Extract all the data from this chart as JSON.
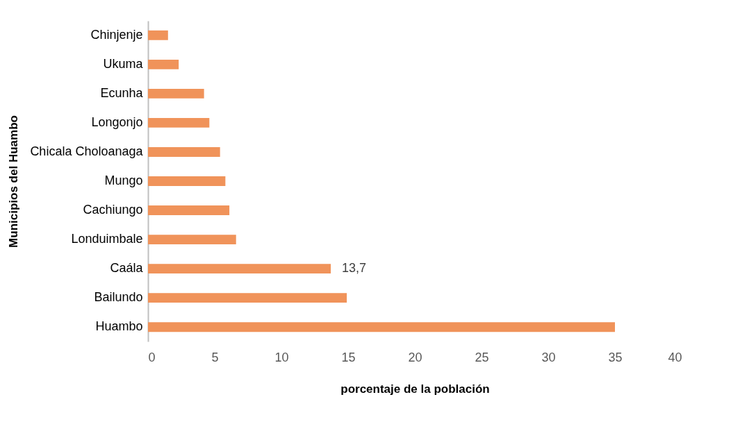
{
  "chart_data": {
    "type": "bar",
    "orientation": "horizontal",
    "xlabel": "porcentaje de la población",
    "ylabel": "Municipios del Huambo",
    "categories": [
      "Chinjenje",
      "Ukuma",
      "Ecunha",
      "Longonjo",
      "Chicala Choloanaga",
      "Mungo",
      "Cachiungo",
      "Londuimbale",
      "Caála",
      "Bailundo",
      "Huambo"
    ],
    "values": [
      1.5,
      2.3,
      4.2,
      4.6,
      5.4,
      5.8,
      6.1,
      6.6,
      13.7,
      14.9,
      35
    ],
    "value_labels": [
      null,
      null,
      null,
      null,
      null,
      null,
      null,
      null,
      "13,7",
      null,
      null
    ],
    "color": "#f0935a",
    "xlim": [
      0,
      40
    ],
    "xticks": [
      0,
      5,
      10,
      15,
      20,
      25,
      30,
      35,
      40
    ],
    "grid": false
  }
}
